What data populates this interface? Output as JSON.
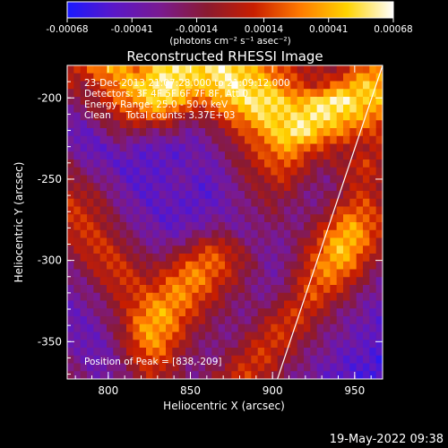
{
  "chart_data": {
    "type": "heatmap",
    "title": "Reconstructed RHESSI Image",
    "xlabel": "Heliocentric X (arcsec)",
    "ylabel": "Heliocentric Y (arcsec)",
    "xlim": [
      775,
      967
    ],
    "ylim": [
      -373,
      -180
    ],
    "x_ticks": [
      "800",
      "850",
      "900",
      "950"
    ],
    "x_tick_values": [
      800,
      850,
      900,
      950
    ],
    "y_ticks": [
      "-200",
      "-250",
      "-300",
      "-350"
    ],
    "y_tick_values": [
      -200,
      -250,
      -300,
      -350
    ],
    "colorbar": {
      "ticks": [
        "-0.00068",
        "-0.00041",
        "-0.00014",
        "0.00014",
        "0.00041",
        "0.00068"
      ],
      "tick_values": [
        -0.00068,
        -0.00041,
        -0.00014,
        0.00014,
        0.00041,
        0.00068
      ],
      "range": [
        -0.00068,
        0.00068
      ],
      "colors": [
        "#1a1aff",
        "#5a17c8",
        "#7a1a90",
        "#8a1a30",
        "#c81e00",
        "#ff7a00",
        "#ffd400",
        "#ffffff"
      ]
    },
    "colorbar_unit": "(photons cm⁻² s⁻¹ asec⁻²)",
    "annotations": [
      "23-Dec-2013 21:07:28.000 to 21:09:12.000",
      "Detectors: 3F 4F 5F 6F 7F 8F, Att 0",
      "Energy Range: 25.0 - 50.0 keV",
      "Clean     Total counts: 3.37E+03"
    ],
    "peak_label": "Position of Peak = [838,-209]",
    "peak": [
      838,
      -209
    ],
    "limb_line": [
      [
        903,
        -373
      ],
      [
        967,
        -180
      ]
    ],
    "heatmap_rows_desc": "rows ordered top (y=-180) to bottom (y=-373); values normalized 0..1 across the color scale",
    "heatmap_grid": [
      [
        0.55,
        0.6,
        0.7,
        0.8,
        0.75,
        0.7,
        0.8,
        0.9,
        0.95,
        0.85,
        0.9,
        0.95,
        0.9,
        0.85,
        0.75,
        0.7,
        0.6,
        0.55,
        0.5,
        0.45,
        0.5,
        0.6,
        0.7,
        0.75
      ],
      [
        0.5,
        0.45,
        0.55,
        0.65,
        0.8,
        0.85,
        0.9,
        0.95,
        0.9,
        0.85,
        0.8,
        0.9,
        0.95,
        0.9,
        0.85,
        0.8,
        0.7,
        0.6,
        0.55,
        0.6,
        0.7,
        0.8,
        0.85,
        0.8
      ],
      [
        0.35,
        0.4,
        0.5,
        0.6,
        0.7,
        0.75,
        0.85,
        0.9,
        0.8,
        0.7,
        0.65,
        0.75,
        0.85,
        0.9,
        0.95,
        0.9,
        0.85,
        0.8,
        0.85,
        0.95,
        0.98,
        0.9,
        0.85,
        0.8
      ],
      [
        0.25,
        0.3,
        0.4,
        0.45,
        0.55,
        0.6,
        0.65,
        0.6,
        0.5,
        0.4,
        0.45,
        0.55,
        0.65,
        0.75,
        0.85,
        0.9,
        0.85,
        0.9,
        0.95,
        0.9,
        0.85,
        0.8,
        0.75,
        0.7
      ],
      [
        0.2,
        0.15,
        0.25,
        0.35,
        0.4,
        0.35,
        0.3,
        0.35,
        0.3,
        0.25,
        0.3,
        0.4,
        0.5,
        0.6,
        0.7,
        0.8,
        0.9,
        0.95,
        0.85,
        0.75,
        0.7,
        0.65,
        0.6,
        0.55
      ],
      [
        0.3,
        0.2,
        0.15,
        0.2,
        0.25,
        0.2,
        0.15,
        0.2,
        0.15,
        0.2,
        0.25,
        0.3,
        0.4,
        0.5,
        0.6,
        0.7,
        0.75,
        0.7,
        0.6,
        0.55,
        0.5,
        0.45,
        0.5,
        0.55
      ],
      [
        0.4,
        0.3,
        0.25,
        0.2,
        0.15,
        0.15,
        0.2,
        0.15,
        0.2,
        0.25,
        0.2,
        0.25,
        0.35,
        0.45,
        0.55,
        0.6,
        0.65,
        0.55,
        0.45,
        0.4,
        0.45,
        0.55,
        0.6,
        0.5
      ],
      [
        0.45,
        0.4,
        0.35,
        0.3,
        0.2,
        0.15,
        0.15,
        0.2,
        0.25,
        0.2,
        0.15,
        0.2,
        0.3,
        0.4,
        0.45,
        0.5,
        0.55,
        0.45,
        0.35,
        0.3,
        0.4,
        0.5,
        0.55,
        0.45
      ],
      [
        0.55,
        0.5,
        0.45,
        0.35,
        0.25,
        0.2,
        0.15,
        0.2,
        0.2,
        0.15,
        0.15,
        0.2,
        0.25,
        0.35,
        0.4,
        0.45,
        0.4,
        0.35,
        0.3,
        0.35,
        0.45,
        0.55,
        0.6,
        0.5
      ],
      [
        0.6,
        0.55,
        0.5,
        0.4,
        0.3,
        0.25,
        0.2,
        0.15,
        0.15,
        0.2,
        0.2,
        0.25,
        0.25,
        0.3,
        0.35,
        0.4,
        0.35,
        0.3,
        0.35,
        0.45,
        0.6,
        0.7,
        0.65,
        0.55
      ],
      [
        0.55,
        0.6,
        0.55,
        0.45,
        0.35,
        0.3,
        0.25,
        0.2,
        0.2,
        0.25,
        0.3,
        0.35,
        0.3,
        0.25,
        0.3,
        0.35,
        0.3,
        0.35,
        0.45,
        0.6,
        0.75,
        0.8,
        0.7,
        0.6
      ],
      [
        0.45,
        0.55,
        0.6,
        0.55,
        0.45,
        0.35,
        0.3,
        0.3,
        0.35,
        0.45,
        0.55,
        0.6,
        0.5,
        0.4,
        0.3,
        0.25,
        0.3,
        0.4,
        0.55,
        0.7,
        0.85,
        0.8,
        0.65,
        0.5
      ],
      [
        0.35,
        0.45,
        0.55,
        0.6,
        0.55,
        0.45,
        0.4,
        0.45,
        0.55,
        0.65,
        0.7,
        0.65,
        0.55,
        0.45,
        0.35,
        0.25,
        0.3,
        0.45,
        0.6,
        0.75,
        0.8,
        0.7,
        0.55,
        0.4
      ],
      [
        0.3,
        0.35,
        0.45,
        0.55,
        0.6,
        0.55,
        0.5,
        0.6,
        0.7,
        0.75,
        0.7,
        0.6,
        0.5,
        0.4,
        0.3,
        0.25,
        0.35,
        0.5,
        0.65,
        0.7,
        0.65,
        0.55,
        0.4,
        0.3
      ],
      [
        0.25,
        0.3,
        0.35,
        0.45,
        0.55,
        0.6,
        0.65,
        0.7,
        0.75,
        0.7,
        0.6,
        0.5,
        0.4,
        0.35,
        0.3,
        0.3,
        0.4,
        0.55,
        0.65,
        0.6,
        0.5,
        0.4,
        0.3,
        0.25
      ],
      [
        0.2,
        0.25,
        0.3,
        0.4,
        0.5,
        0.65,
        0.75,
        0.8,
        0.7,
        0.6,
        0.5,
        0.4,
        0.35,
        0.3,
        0.35,
        0.45,
        0.55,
        0.6,
        0.55,
        0.45,
        0.35,
        0.3,
        0.25,
        0.2
      ],
      [
        0.2,
        0.2,
        0.25,
        0.35,
        0.5,
        0.7,
        0.8,
        0.75,
        0.65,
        0.5,
        0.4,
        0.35,
        0.3,
        0.35,
        0.45,
        0.55,
        0.6,
        0.55,
        0.45,
        0.35,
        0.3,
        0.25,
        0.2,
        0.15
      ],
      [
        0.25,
        0.2,
        0.2,
        0.3,
        0.45,
        0.65,
        0.75,
        0.7,
        0.55,
        0.4,
        0.35,
        0.3,
        0.35,
        0.45,
        0.55,
        0.6,
        0.55,
        0.45,
        0.35,
        0.3,
        0.25,
        0.2,
        0.2,
        0.15
      ],
      [
        0.3,
        0.25,
        0.2,
        0.25,
        0.4,
        0.55,
        0.65,
        0.6,
        0.45,
        0.35,
        0.3,
        0.35,
        0.45,
        0.55,
        0.6,
        0.55,
        0.45,
        0.35,
        0.3,
        0.25,
        0.2,
        0.15,
        0.15,
        0.1
      ],
      [
        0.35,
        0.3,
        0.25,
        0.25,
        0.35,
        0.45,
        0.55,
        0.5,
        0.4,
        0.3,
        0.35,
        0.45,
        0.55,
        0.6,
        0.55,
        0.45,
        0.35,
        0.3,
        0.25,
        0.2,
        0.15,
        0.15,
        0.1,
        0.1
      ]
    ]
  },
  "timestamp": "19-May-2022 09:38"
}
